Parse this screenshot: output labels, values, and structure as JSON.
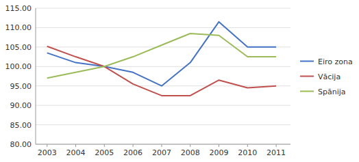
{
  "chart_data": {
    "type": "line",
    "x": [
      2003,
      2004,
      2005,
      2006,
      2007,
      2008,
      2009,
      2010,
      2011
    ],
    "xlim": [
      2002.6,
      2011.5
    ],
    "xticks": [
      2003,
      2004,
      2005,
      2006,
      2007,
      2008,
      2009,
      2010,
      2011
    ],
    "ylim": [
      80.0,
      115.0
    ],
    "yticks": [
      {
        "value": 80.0,
        "label": "80.00"
      },
      {
        "value": 85.0,
        "label": "85.00"
      },
      {
        "value": 90.0,
        "label": "90.00"
      },
      {
        "value": 95.0,
        "label": "95.00"
      },
      {
        "value": 100.0,
        "label": "100.00"
      },
      {
        "value": 105.0,
        "label": "105.00"
      },
      {
        "value": 110.0,
        "label": "110.00"
      },
      {
        "value": 115.0,
        "label": "115.00"
      }
    ],
    "grid": true,
    "legend": "right",
    "series": [
      {
        "name": "Eiro zona",
        "color": "#4472C4",
        "values": [
          103.5,
          101.0,
          100.0,
          98.5,
          95.0,
          101.0,
          111.5,
          105.0,
          105.0
        ]
      },
      {
        "name": "Vācija",
        "color": "#C0504D",
        "values": [
          105.2,
          102.5,
          100.0,
          95.5,
          92.5,
          92.5,
          96.5,
          94.5,
          95.0
        ]
      },
      {
        "name": "Spānija",
        "color": "#9BBB59",
        "values": [
          97.0,
          98.5,
          100.0,
          102.5,
          105.5,
          108.5,
          108.0,
          102.5,
          102.5
        ]
      }
    ]
  }
}
